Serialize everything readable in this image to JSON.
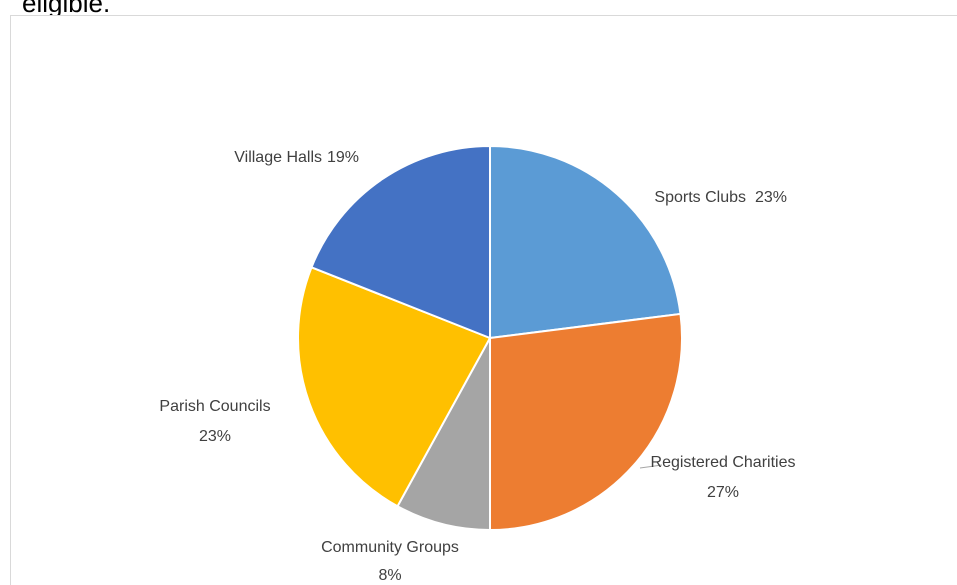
{
  "text_above": "eligible.",
  "chart_data": {
    "type": "pie",
    "categories": [
      "Sports Clubs",
      "Registered Charities",
      "Community Groups",
      "Parish Councils",
      "Village Halls"
    ],
    "values": [
      23,
      27,
      8,
      23,
      19
    ],
    "value_labels": [
      "23%",
      "27%",
      "8%",
      "23%",
      "19%"
    ],
    "colors": [
      "#5b9bd5",
      "#ed7d31",
      "#a5a5a5",
      "#ffc000",
      "#4472c4"
    ]
  }
}
